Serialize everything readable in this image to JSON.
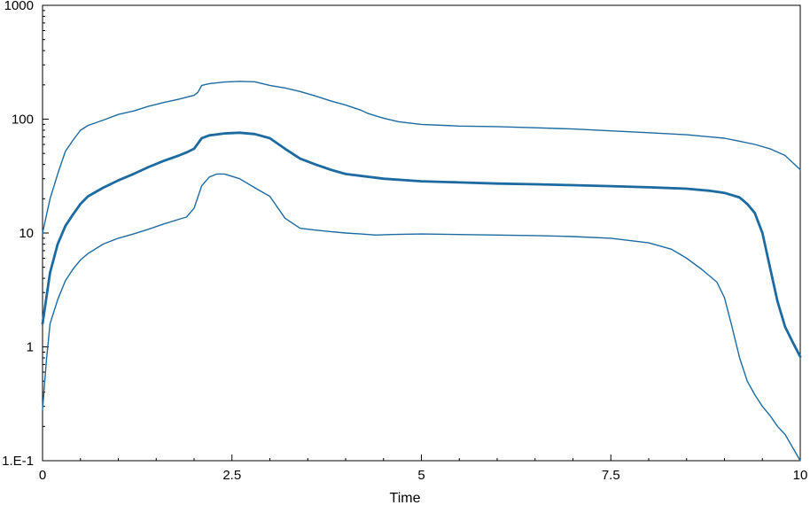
{
  "chart_data": {
    "type": "line",
    "title": "",
    "xlabel": "Time",
    "ylabel": "",
    "xlim": [
      0,
      10
    ],
    "ylim": [
      0.1,
      1000
    ],
    "yscale": "log",
    "grid": false,
    "legend": "none",
    "color": "#1c6aa0",
    "x_ticks": [
      0,
      2.5,
      5,
      7.5,
      10
    ],
    "x_tick_labels": [
      "0",
      "2.5",
      "5",
      "7.5",
      "10"
    ],
    "y_ticks": [
      0.1,
      1,
      10,
      100,
      1000
    ],
    "y_tick_labels": [
      "1.E-1",
      "1",
      "10",
      "100",
      "1000"
    ],
    "series": [
      {
        "role": "upper",
        "x": [
          0,
          0.1,
          0.2,
          0.3,
          0.4,
          0.5,
          0.6,
          0.8,
          1.0,
          1.2,
          1.4,
          1.6,
          1.8,
          2.0,
          2.05,
          2.1,
          2.2,
          2.4,
          2.6,
          2.8,
          3.0,
          3.2,
          3.4,
          3.6,
          3.8,
          4.0,
          4.2,
          4.3,
          4.5,
          4.7,
          5.0,
          5.5,
          6.0,
          6.5,
          7.0,
          7.5,
          8.0,
          8.5,
          8.8,
          9.0,
          9.2,
          9.4,
          9.6,
          9.8,
          10.0
        ],
        "values": [
          10,
          20,
          33,
          52,
          65,
          80,
          88,
          98,
          110,
          118,
          130,
          140,
          150,
          162,
          172,
          198,
          205,
          212,
          215,
          213,
          198,
          188,
          175,
          160,
          145,
          133,
          120,
          112,
          102,
          95,
          90,
          87,
          86,
          84,
          82,
          79,
          76,
          73,
          70,
          68,
          64,
          60,
          55,
          48,
          36
        ]
      },
      {
        "role": "mean",
        "x": [
          0,
          0.1,
          0.2,
          0.3,
          0.4,
          0.5,
          0.6,
          0.8,
          1.0,
          1.2,
          1.4,
          1.6,
          1.8,
          1.9,
          2.0,
          2.1,
          2.2,
          2.4,
          2.6,
          2.8,
          3.0,
          3.2,
          3.4,
          3.6,
          3.8,
          4.0,
          4.5,
          5.0,
          5.5,
          6.0,
          6.5,
          7.0,
          7.5,
          8.0,
          8.5,
          8.8,
          9.0,
          9.2,
          9.3,
          9.4,
          9.5,
          9.6,
          9.7,
          9.8,
          9.9,
          10.0
        ],
        "values": [
          1.6,
          4.5,
          8,
          11.5,
          14.5,
          18,
          21,
          25,
          29,
          33,
          38,
          43,
          48,
          51,
          55,
          68,
          72,
          75,
          76,
          74,
          68,
          55,
          45,
          40,
          36,
          33,
          30,
          28.5,
          27.8,
          27.2,
          26.8,
          26.3,
          25.8,
          25.2,
          24.5,
          23.5,
          22.5,
          20.5,
          18,
          15,
          10,
          5,
          2.5,
          1.5,
          1.1,
          0.82
        ]
      },
      {
        "role": "lower",
        "x": [
          0,
          0.05,
          0.1,
          0.2,
          0.3,
          0.4,
          0.5,
          0.6,
          0.8,
          1.0,
          1.2,
          1.4,
          1.6,
          1.8,
          1.9,
          2.0,
          2.1,
          2.2,
          2.3,
          2.4,
          2.6,
          2.8,
          3.0,
          3.2,
          3.4,
          3.6,
          3.8,
          4.0,
          4.2,
          4.4,
          4.6,
          5.0,
          5.5,
          6.0,
          6.5,
          7.0,
          7.5,
          8.0,
          8.3,
          8.5,
          8.7,
          8.9,
          9.0,
          9.1,
          9.2,
          9.3,
          9.4,
          9.5,
          9.6,
          9.7,
          9.8,
          10.0
        ],
        "values": [
          0.28,
          0.75,
          1.6,
          2.6,
          3.8,
          4.8,
          5.8,
          6.6,
          8,
          9,
          9.8,
          10.8,
          12,
          13.2,
          13.8,
          16.5,
          26,
          31,
          33,
          33,
          30,
          25,
          21,
          13.5,
          11,
          10.6,
          10.3,
          10,
          9.8,
          9.6,
          9.7,
          9.8,
          9.7,
          9.6,
          9.5,
          9.3,
          9,
          8.2,
          7.2,
          6,
          4.8,
          3.7,
          2.7,
          1.5,
          0.8,
          0.5,
          0.38,
          0.3,
          0.25,
          0.2,
          0.17,
          0.1
        ]
      }
    ]
  }
}
